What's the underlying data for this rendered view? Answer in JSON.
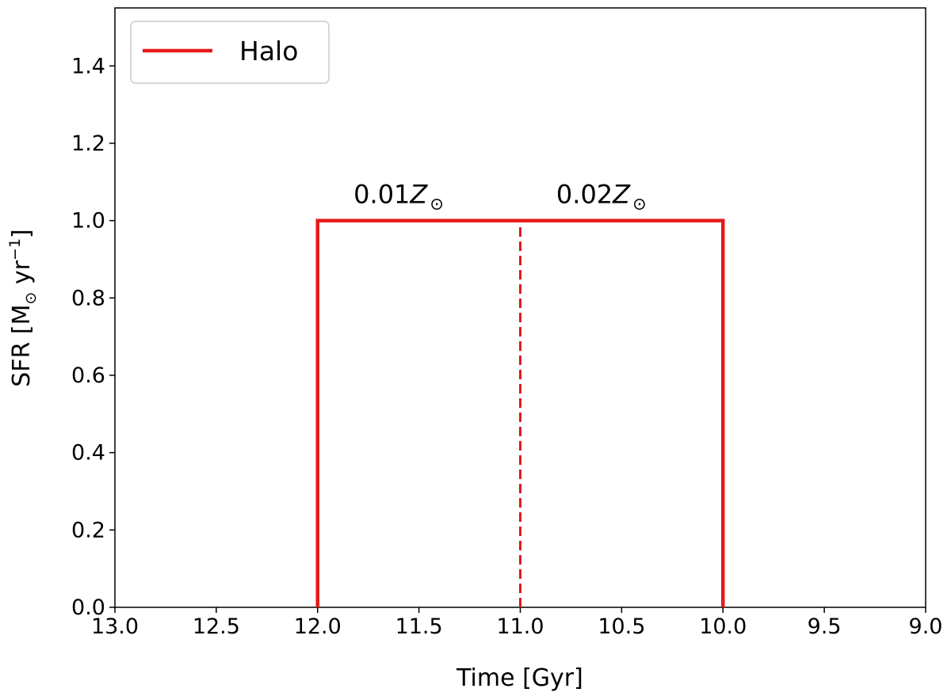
{
  "chart_data": {
    "type": "line",
    "xlabel": "Time [Gyr]",
    "ylabel": {
      "main": "SFR [M",
      "sub": "⊙",
      "mid": " yr",
      "sup": "−1",
      "end": "]"
    },
    "xlim": [
      13.0,
      9.0
    ],
    "x_inverted": true,
    "ylim": [
      0.0,
      1.55
    ],
    "x_ticks": [
      13.0,
      12.5,
      12.0,
      11.5,
      11.0,
      10.5,
      10.0,
      9.5,
      9.0
    ],
    "x_tick_labels": [
      "13.0",
      "12.5",
      "12.0",
      "11.5",
      "11.0",
      "10.5",
      "10.0",
      "9.5",
      "9.0"
    ],
    "y_ticks": [
      0.0,
      0.2,
      0.4,
      0.6,
      0.8,
      1.0,
      1.2,
      1.4
    ],
    "y_tick_labels": [
      "0.0",
      "0.2",
      "0.4",
      "0.6",
      "0.8",
      "1.0",
      "1.2",
      "1.4"
    ],
    "grid": false,
    "legend_position": "top-left",
    "series": [
      {
        "name": "Halo",
        "color": "#e41a1c",
        "style": "solid",
        "x": [
          12.0,
          12.0,
          10.0,
          10.0
        ],
        "y": [
          0.0,
          1.0,
          1.0,
          0.0
        ]
      }
    ],
    "reference_lines": [
      {
        "x": [
          11.0,
          11.0
        ],
        "y": [
          0.0,
          1.0
        ],
        "color": "#e41a1c",
        "style": "dashed"
      }
    ],
    "annotations": [
      {
        "prefix": "0.01",
        "symbol": "Z",
        "subscript": "⊙",
        "x": 11.6,
        "y": 1.07
      },
      {
        "prefix": "0.02",
        "symbol": "Z",
        "subscript": "⊙",
        "x": 10.6,
        "y": 1.07
      }
    ]
  }
}
